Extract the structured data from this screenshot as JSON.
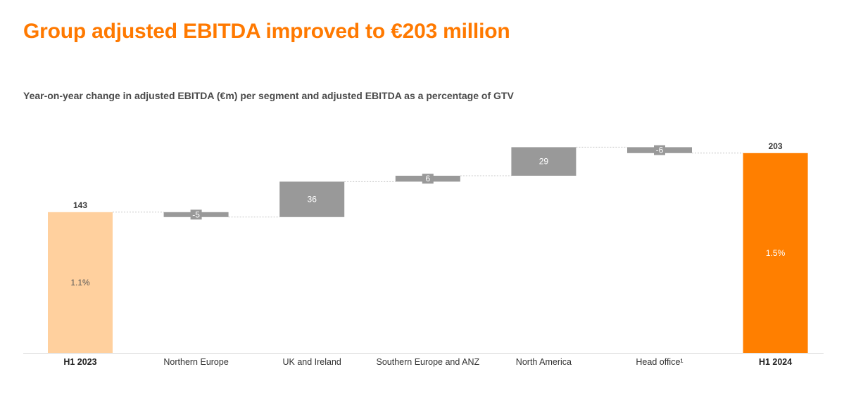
{
  "title": "Group adjusted EBITDA improved to €203 million",
  "colors": {
    "title": "#ff7900",
    "start_bar": "#ffd09e",
    "end_bar": "#ff7f00",
    "delta_bar": "#999999",
    "axis": "#d9d9d9",
    "connector": "#c8c8c8",
    "text": "#3a3a3a"
  },
  "chart_data": {
    "type": "bar",
    "subtype": "waterfall",
    "title": "Year-on-year change in adjusted EBITDA (€m) per segment and adjusted EBITDA as a percentage of GTV",
    "xlabel": "",
    "ylabel": "",
    "ylim": [
      0,
      210
    ],
    "grid": false,
    "legend": "none",
    "categories": [
      "H1 2023",
      "Northern Europe",
      "UK and Ireland",
      "Southern Europe and ANZ",
      "North America",
      "Head office¹",
      "H1 2024"
    ],
    "category_bold": [
      true,
      false,
      false,
      false,
      false,
      false,
      true
    ],
    "values": [
      143,
      -5,
      36,
      6,
      29,
      -6,
      203
    ],
    "kinds": [
      "total",
      "delta",
      "delta",
      "delta",
      "delta",
      "delta",
      "total"
    ],
    "value_labels": [
      "143",
      "-5",
      "36",
      "6",
      "29",
      "-6",
      "203"
    ],
    "inner_labels": [
      "1.1%",
      "",
      "",
      "",
      "",
      "",
      "1.5%"
    ]
  }
}
